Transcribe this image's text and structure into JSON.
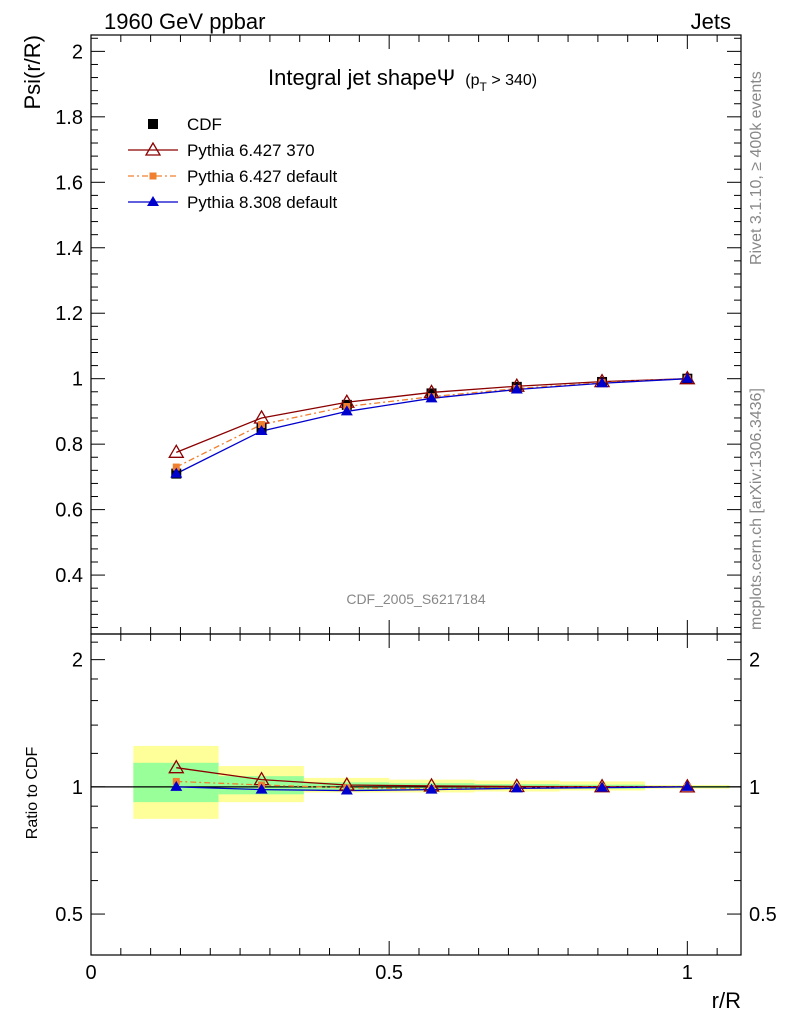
{
  "header": {
    "left": "1960 GeV ppbar",
    "right": "Jets"
  },
  "side": {
    "rivet": "Rivet 3.1.10, ≥ 400k events",
    "mcplots": "mcplots.cern.ch [arXiv:1306.3436]"
  },
  "chart_data": {
    "type": "line",
    "title": "Integral jet shapeΨ",
    "title_sub_prefix": "(p",
    "title_sub_index": "T",
    "title_sub_suffix": " > 340)",
    "analysis_id": "CDF_2005_S6217184",
    "xlabel": "r/R",
    "ylabel": "Psi(r/R)",
    "ratio_ylabel": "Ratio to CDF",
    "xlim": [
      0,
      1.09
    ],
    "ylim": [
      0.22,
      2.05
    ],
    "ratio_ylim": [
      0.4,
      2.3
    ],
    "x_ticks": [
      0,
      0.5,
      1
    ],
    "x_tick_labels": [
      "0",
      "0.5",
      "1"
    ],
    "y_ticks": [
      0.4,
      0.6,
      0.8,
      1,
      1.2,
      1.4,
      1.6,
      1.8,
      2
    ],
    "y_tick_labels": [
      "0.4",
      "0.6",
      "0.8",
      "1",
      "1.2",
      "1.4",
      "1.6",
      "1.8",
      "2"
    ],
    "ratio_ticks": [
      0.5,
      1,
      2
    ],
    "ratio_tick_labels": [
      "0.5",
      "1",
      "2"
    ],
    "x": [
      0.143,
      0.286,
      0.429,
      0.571,
      0.714,
      0.857,
      1.0
    ],
    "bin_edges": [
      0.071,
      0.214,
      0.357,
      0.5,
      0.643,
      0.786,
      0.929,
      1.071
    ],
    "band_yellow": [
      [
        0.84,
        1.25
      ],
      [
        0.92,
        1.12
      ],
      [
        0.97,
        1.05
      ],
      [
        0.97,
        1.04
      ],
      [
        0.975,
        1.035
      ],
      [
        0.98,
        1.03
      ],
      [
        0.99,
        1.01
      ]
    ],
    "band_green": [
      [
        0.92,
        1.14
      ],
      [
        0.96,
        1.06
      ],
      [
        0.985,
        1.025
      ],
      [
        0.985,
        1.02
      ],
      [
        0.99,
        1.015
      ],
      [
        0.99,
        1.012
      ],
      [
        0.995,
        1.005
      ]
    ],
    "series": [
      {
        "name": "CDF",
        "marker": "square",
        "color": "#000000",
        "values": [
          0.71,
          0.85,
          0.92,
          0.955,
          0.975,
          0.99,
          1.0
        ],
        "ratio": [
          1,
          1,
          1,
          1,
          1,
          1,
          1
        ]
      },
      {
        "name": "Pythia 6.427 370",
        "marker": "open-triangle",
        "color": "#8b0000",
        "values": [
          0.775,
          0.88,
          0.928,
          0.958,
          0.977,
          0.991,
          1.0
        ],
        "ratio": [
          1.11,
          1.04,
          1.01,
          1.005,
          1.002,
          1.001,
          1.0
        ]
      },
      {
        "name": "Pythia 6.427 default",
        "marker": "square-small",
        "color": "#f08030",
        "values": [
          0.73,
          0.86,
          0.915,
          0.945,
          0.97,
          0.988,
          1.0
        ],
        "ratio": [
          1.03,
          1.01,
          0.995,
          0.99,
          0.995,
          0.998,
          1.0
        ]
      },
      {
        "name": "Pythia 8.308 default",
        "marker": "triangle",
        "color": "#0000cc",
        "values": [
          0.71,
          0.84,
          0.9,
          0.94,
          0.967,
          0.986,
          1.0
        ],
        "ratio": [
          1.0,
          0.985,
          0.98,
          0.985,
          0.992,
          0.996,
          1.0
        ]
      }
    ]
  }
}
